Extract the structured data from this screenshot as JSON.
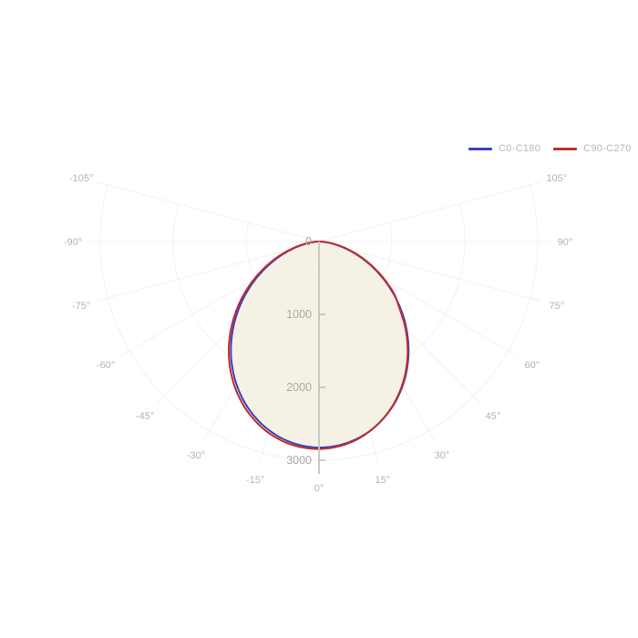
{
  "chart_data": {
    "type": "polar",
    "angle_unit_suffix": "°",
    "angles_deg": [
      -90,
      -85,
      -80,
      -75,
      -70,
      -65,
      -60,
      -55,
      -50,
      -45,
      -40,
      -35,
      -30,
      -25,
      -20,
      -15,
      -10,
      -5,
      0,
      5,
      10,
      15,
      20,
      25,
      30,
      35,
      40,
      45,
      50,
      55,
      60,
      65,
      70,
      75,
      80,
      85,
      90
    ],
    "series": [
      {
        "name": "C0-C180",
        "color": "#3a41c2",
        "values": [
          0,
          64,
          192,
          358,
          549,
          759,
          981,
          1209,
          1438,
          1662,
          1878,
          2079,
          2263,
          2425,
          2563,
          2674,
          2756,
          2806,
          2825,
          2811,
          2766,
          2690,
          2583,
          2449,
          2290,
          2110,
          1911,
          1697,
          1474,
          1246,
          1017,
          794,
          581,
          387,
          217,
          82,
          2
        ]
      },
      {
        "name": "C90-C270",
        "color": "#bf2d2d",
        "values": [
          2,
          83,
          219,
          390,
          585,
          800,
          1024,
          1255,
          1484,
          1709,
          1925,
          2125,
          2306,
          2466,
          2601,
          2709,
          2786,
          2831,
          2845,
          2826,
          2776,
          2693,
          2581,
          2442,
          2279,
          2094,
          1891,
          1674,
          1448,
          1260,
          1035,
          815,
          605,
          410,
          235,
          95,
          5
        ]
      }
    ],
    "fill_color": "rgba(243,240,225,0.85)",
    "grid": {
      "angle_ticks_deg": [
        -105,
        -90,
        -75,
        -60,
        -45,
        -30,
        -15,
        0,
        15,
        30,
        45,
        60,
        75,
        90,
        105
      ],
      "radial_ticks": [
        0,
        1000,
        2000,
        3000
      ],
      "rlim": [
        0,
        3000
      ],
      "grid_line_color": "rgba(0,0,0,0.055)",
      "axis_line_color": "#c6c6c6",
      "tick_color": "#adadad",
      "radial_label_color": "#a9a9a9",
      "angle_label_color": "#b3b3b3"
    },
    "legend": {
      "position": "top-right",
      "text_color": "#b9b9b9"
    }
  }
}
